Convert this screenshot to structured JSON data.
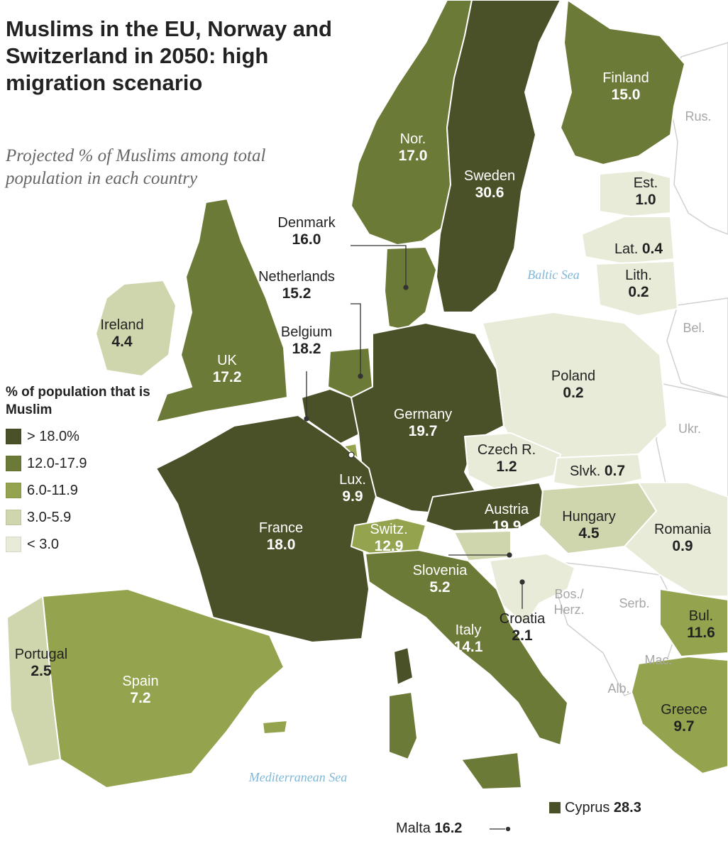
{
  "title": "Muslims in the EU, Norway and Switzerland in 2050: high migration scenario",
  "subtitle": "Projected % of Muslims among total population in each country",
  "legend": {
    "title": "% of population that is Muslim",
    "items": [
      {
        "label": "> 18.0%",
        "color": "#4a5128"
      },
      {
        "label": "12.0-17.9",
        "color": "#6c7a37"
      },
      {
        "label": "6.0-11.9",
        "color": "#93a34e"
      },
      {
        "label": "3.0-5.9",
        "color": "#cfd6ad"
      },
      {
        "label": "< 3.0",
        "color": "#e8ebd8"
      }
    ]
  },
  "colors": {
    "sea": "#ffffff",
    "non_eu": "#ffffff",
    "border": "#ffffff",
    "leader": "#333333"
  },
  "countries": {
    "sweden": {
      "name": "Sweden",
      "value": "30.6"
    },
    "norway": {
      "name": "Nor.",
      "value": "17.0"
    },
    "finland": {
      "name": "Finland",
      "value": "15.0"
    },
    "estonia": {
      "name": "Est.",
      "value": "1.0"
    },
    "latvia": {
      "name": "Lat.",
      "value": "0.4"
    },
    "lithuania": {
      "name": "Lith.",
      "value": "0.2"
    },
    "denmark": {
      "name": "Denmark",
      "value": "16.0"
    },
    "netherlands": {
      "name": "Netherlands",
      "value": "15.2"
    },
    "belgium": {
      "name": "Belgium",
      "value": "18.2"
    },
    "ireland": {
      "name": "Ireland",
      "value": "4.4"
    },
    "uk": {
      "name": "UK",
      "value": "17.2"
    },
    "poland": {
      "name": "Poland",
      "value": "0.2"
    },
    "germany": {
      "name": "Germany",
      "value": "19.7"
    },
    "czech": {
      "name": "Czech R.",
      "value": "1.2"
    },
    "slovakia": {
      "name": "Slvk.",
      "value": "0.7"
    },
    "luxembourg": {
      "name": "Lux.",
      "value": "9.9"
    },
    "austria": {
      "name": "Austria",
      "value": "19.9"
    },
    "hungary": {
      "name": "Hungary",
      "value": "4.5"
    },
    "romania": {
      "name": "Romania",
      "value": "0.9"
    },
    "france": {
      "name": "France",
      "value": "18.0"
    },
    "switzerland": {
      "name": "Switz.",
      "value": "12.9"
    },
    "slovenia": {
      "name": "Slovenia",
      "value": "5.2"
    },
    "croatia": {
      "name": "Croatia",
      "value": "2.1"
    },
    "bulgaria": {
      "name": "Bul.",
      "value": "11.6"
    },
    "italy": {
      "name": "Italy",
      "value": "14.1"
    },
    "portugal": {
      "name": "Portugal",
      "value": "2.5"
    },
    "spain": {
      "name": "Spain",
      "value": "7.2"
    },
    "greece": {
      "name": "Greece",
      "value": "9.7"
    },
    "cyprus": {
      "name": "Cyprus",
      "value": "28.3"
    },
    "malta": {
      "name": "Malta",
      "value": "16.2"
    }
  },
  "neighbors": {
    "russia": "Rus.",
    "belarus": "Bel.",
    "ukraine": "Ukr.",
    "bosnia": "Bos./ Herz.",
    "serbia": "Serb.",
    "macedonia": "Mac.",
    "albania": "Alb."
  },
  "seas": {
    "baltic": "Baltic Sea",
    "mediterranean": "Mediterranean Sea"
  }
}
